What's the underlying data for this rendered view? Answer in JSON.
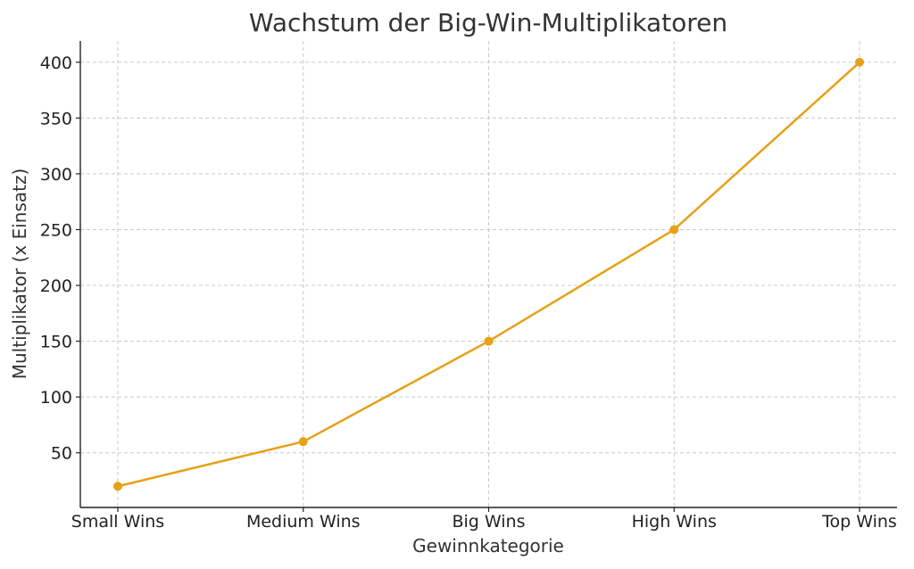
{
  "chart_data": {
    "type": "line",
    "title": "Wachstum der Big-Win-Multiplikatoren",
    "xlabel": "Gewinnkategorie",
    "ylabel": "Multiplikator (x Einsatz)",
    "categories": [
      "Small Wins",
      "Medium Wins",
      "Big Wins",
      "High Wins",
      "Top Wins"
    ],
    "series": [
      {
        "values": [
          20,
          60,
          150,
          250,
          400
        ],
        "color": "#E6A117"
      }
    ],
    "yticks": [
      50,
      100,
      150,
      200,
      250,
      300,
      350,
      400
    ],
    "ylim": [
      1,
      419
    ],
    "grid": true,
    "markers": true
  }
}
